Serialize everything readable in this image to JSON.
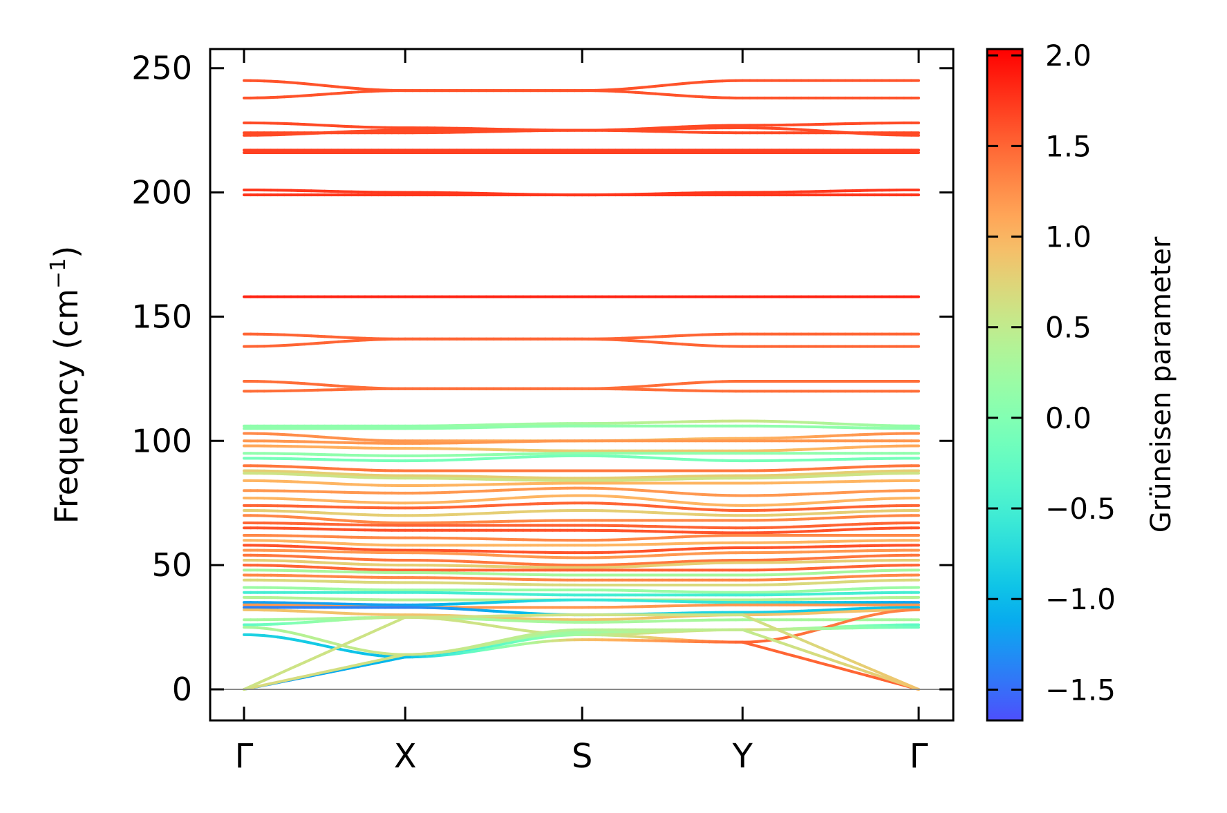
{
  "chart_data": {
    "type": "line",
    "title": "",
    "xlabel": "",
    "ylabel": "Frequency (cm⁻¹)",
    "ylabel_main": "Frequency (cm",
    "ylabel_sup": "−1",
    "ylabel_close": ")",
    "ylim": [
      -12.5,
      257.7
    ],
    "yticks": [
      0,
      50,
      100,
      150,
      200,
      250
    ],
    "ytick_labels": [
      "0",
      "50",
      "100",
      "150",
      "200",
      "250"
    ],
    "kpoints": [
      0,
      205,
      430,
      634,
      858
    ],
    "kpoint_labels": [
      "Γ",
      "X",
      "S",
      "Y",
      "Γ"
    ],
    "zero_line": 0,
    "colorbar": {
      "label": "Grüneisen parameter",
      "range": [
        -1.67,
        2.035
      ],
      "ticks": [
        2.0,
        1.5,
        1.0,
        0.5,
        0.0,
        -0.5,
        -1.0,
        -1.5
      ],
      "tick_labels": [
        "2.0",
        "1.5",
        "1.0",
        "0.5",
        "0.0",
        "−0.5",
        "−1.0",
        "−1.5"
      ],
      "colormap": "rainbow"
    },
    "bands": [
      {
        "freq": [
          245,
          241,
          241,
          245,
          245
        ],
        "gamma": [
          1.6,
          1.6,
          1.6,
          1.6,
          1.6
        ]
      },
      {
        "freq": [
          238,
          241,
          241,
          238,
          238
        ],
        "gamma": [
          1.6,
          1.6,
          1.6,
          1.6,
          1.6
        ]
      },
      {
        "freq": [
          228,
          226,
          225,
          227,
          228
        ],
        "gamma": [
          1.65,
          1.65,
          1.65,
          1.65,
          1.65
        ]
      },
      {
        "freq": [
          224,
          224,
          225,
          224,
          224
        ],
        "gamma": [
          1.65,
          1.65,
          1.65,
          1.65,
          1.65
        ]
      },
      {
        "freq": [
          223,
          225,
          225,
          226,
          223
        ],
        "gamma": [
          1.65,
          1.65,
          1.65,
          1.65,
          1.65
        ]
      },
      {
        "freq": [
          217,
          217,
          217,
          217,
          217
        ],
        "gamma": [
          1.7,
          1.7,
          1.7,
          1.7,
          1.7
        ]
      },
      {
        "freq": [
          216,
          216,
          216,
          216,
          216
        ],
        "gamma": [
          1.7,
          1.7,
          1.7,
          1.7,
          1.7
        ]
      },
      {
        "freq": [
          201,
          200,
          199,
          200,
          201
        ],
        "gamma": [
          1.75,
          1.75,
          1.75,
          1.75,
          1.75
        ]
      },
      {
        "freq": [
          199,
          199,
          199,
          199,
          199
        ],
        "gamma": [
          1.75,
          1.75,
          1.75,
          1.75,
          1.75
        ]
      },
      {
        "freq": [
          158,
          158,
          158,
          158,
          158
        ],
        "gamma": [
          1.85,
          1.85,
          1.85,
          1.85,
          1.85
        ]
      },
      {
        "freq": [
          143,
          141,
          141,
          143,
          143
        ],
        "gamma": [
          1.5,
          1.5,
          1.5,
          1.5,
          1.5
        ]
      },
      {
        "freq": [
          138,
          141,
          141,
          138,
          138
        ],
        "gamma": [
          1.5,
          1.5,
          1.5,
          1.5,
          1.5
        ]
      },
      {
        "freq": [
          124,
          121,
          121,
          124,
          124
        ],
        "gamma": [
          1.45,
          1.45,
          1.45,
          1.45,
          1.45
        ]
      },
      {
        "freq": [
          120,
          121,
          121,
          120,
          120
        ],
        "gamma": [
          1.45,
          1.45,
          1.45,
          1.45,
          1.45
        ]
      },
      {
        "freq": [
          106,
          106,
          107,
          108,
          106
        ],
        "gamma": [
          0.1,
          0.1,
          0.3,
          0.6,
          0.1
        ]
      },
      {
        "freq": [
          105,
          105,
          106,
          106,
          105
        ],
        "gamma": [
          0.1,
          0.1,
          0.1,
          0.1,
          0.1
        ]
      },
      {
        "freq": [
          103,
          100,
          100,
          101,
          103
        ],
        "gamma": [
          1.3,
          1.2,
          0.9,
          1.0,
          1.3
        ]
      },
      {
        "freq": [
          100,
          99,
          100,
          100,
          100
        ],
        "gamma": [
          1.2,
          1.2,
          1.2,
          1.2,
          1.2
        ]
      },
      {
        "freq": [
          98,
          97,
          96,
          96,
          98
        ],
        "gamma": [
          1.1,
          1.0,
          0.8,
          0.9,
          1.1
        ]
      },
      {
        "freq": [
          95,
          94,
          95,
          95,
          95
        ],
        "gamma": [
          0.1,
          0.1,
          0.1,
          0.1,
          0.1
        ]
      },
      {
        "freq": [
          93,
          92,
          94,
          92,
          93
        ],
        "gamma": [
          -0.1,
          -0.1,
          -0.1,
          -0.1,
          -0.1
        ]
      },
      {
        "freq": [
          90,
          88,
          88,
          88,
          90
        ],
        "gamma": [
          1.4,
          1.4,
          1.4,
          1.4,
          1.4
        ]
      },
      {
        "freq": [
          88,
          86,
          85,
          86,
          88
        ],
        "gamma": [
          0.8,
          0.8,
          0.8,
          0.8,
          0.8
        ]
      },
      {
        "freq": [
          87,
          85,
          84,
          85,
          87
        ],
        "gamma": [
          0.6,
          0.6,
          0.6,
          0.6,
          0.6
        ]
      },
      {
        "freq": [
          84,
          82,
          83,
          83,
          84
        ],
        "gamma": [
          1.0,
          1.0,
          1.0,
          1.0,
          1.0
        ]
      },
      {
        "freq": [
          80,
          79,
          81,
          78,
          80
        ],
        "gamma": [
          1.2,
          1.2,
          1.2,
          1.2,
          1.2
        ]
      },
      {
        "freq": [
          77,
          75,
          78,
          74,
          77
        ],
        "gamma": [
          1.0,
          1.0,
          1.0,
          1.0,
          1.0
        ]
      },
      {
        "freq": [
          74,
          73,
          75,
          72,
          74
        ],
        "gamma": [
          1.5,
          1.5,
          1.5,
          1.5,
          1.5
        ]
      },
      {
        "freq": [
          72,
          70,
          72,
          70,
          72
        ],
        "gamma": [
          0.8,
          0.8,
          0.8,
          0.8,
          0.8
        ]
      },
      {
        "freq": [
          70,
          67,
          68,
          68,
          70
        ],
        "gamma": [
          1.3,
          1.3,
          1.3,
          1.3,
          1.3
        ]
      },
      {
        "freq": [
          67,
          66,
          66,
          65,
          67
        ],
        "gamma": [
          1.5,
          1.5,
          1.5,
          1.5,
          1.5
        ]
      },
      {
        "freq": [
          65,
          64,
          64,
          63,
          65
        ],
        "gamma": [
          1.6,
          1.6,
          1.6,
          1.6,
          1.6
        ]
      },
      {
        "freq": [
          62,
          61,
          60,
          62,
          62
        ],
        "gamma": [
          1.3,
          1.3,
          1.3,
          1.3,
          1.3
        ]
      },
      {
        "freq": [
          60,
          58,
          58,
          59,
          60
        ],
        "gamma": [
          1.0,
          1.0,
          1.0,
          1.0,
          1.0
        ]
      },
      {
        "freq": [
          58,
          56,
          55,
          57,
          58
        ],
        "gamma": [
          1.6,
          1.6,
          1.6,
          1.6,
          1.6
        ]
      },
      {
        "freq": [
          56,
          55,
          53,
          55,
          56
        ],
        "gamma": [
          1.2,
          1.2,
          1.2,
          1.2,
          1.2
        ]
      },
      {
        "freq": [
          54,
          52,
          50,
          52,
          54
        ],
        "gamma": [
          1.4,
          1.4,
          1.4,
          1.4,
          1.4
        ]
      },
      {
        "freq": [
          52,
          50,
          49,
          51,
          52
        ],
        "gamma": [
          0.8,
          0.8,
          0.8,
          0.8,
          0.8
        ]
      },
      {
        "freq": [
          50,
          48,
          48,
          48,
          50
        ],
        "gamma": [
          1.5,
          1.5,
          1.5,
          1.5,
          1.5
        ]
      },
      {
        "freq": [
          48,
          47,
          46,
          46,
          48
        ],
        "gamma": [
          0.3,
          0.3,
          0.3,
          0.3,
          0.3
        ]
      },
      {
        "freq": [
          46,
          45,
          44,
          44,
          46
        ],
        "gamma": [
          1.3,
          1.3,
          1.3,
          1.3,
          1.3
        ]
      },
      {
        "freq": [
          44,
          43,
          42,
          42,
          44
        ],
        "gamma": [
          0.7,
          0.7,
          0.7,
          0.7,
          0.7
        ]
      },
      {
        "freq": [
          41,
          40,
          40,
          39,
          41
        ],
        "gamma": [
          0.2,
          0.2,
          0.2,
          0.2,
          0.2
        ]
      },
      {
        "freq": [
          39,
          39,
          38,
          38,
          39
        ],
        "gamma": [
          -0.5,
          -0.5,
          -0.5,
          -0.5,
          -0.5
        ]
      },
      {
        "freq": [
          37,
          36,
          36,
          36,
          37
        ],
        "gamma": [
          0.4,
          0.4,
          0.4,
          0.4,
          0.4
        ]
      },
      {
        "freq": [
          35,
          34,
          36,
          35,
          35
        ],
        "gamma": [
          -1.2,
          -1.2,
          -0.6,
          -0.6,
          -1.2
        ]
      },
      {
        "freq": [
          34,
          33,
          33,
          34,
          34
        ],
        "gamma": [
          1.2,
          1.2,
          1.2,
          1.2,
          1.2
        ]
      },
      {
        "freq": [
          33,
          33,
          30,
          31,
          33
        ],
        "gamma": [
          -1.4,
          -1.4,
          -0.8,
          -0.8,
          -1.0
        ]
      },
      {
        "freq": [
          32,
          30,
          28,
          30,
          32
        ],
        "gamma": [
          0.9,
          0.9,
          0.9,
          0.9,
          0.9
        ]
      },
      {
        "freq": [
          28,
          29,
          27,
          28,
          28
        ],
        "gamma": [
          0.3,
          0.3,
          0.3,
          0.3,
          0.3
        ]
      },
      {
        "freq": [
          26,
          29,
          22,
          24,
          26
        ],
        "gamma": [
          -0.3,
          0.6,
          0.6,
          0.6,
          -0.3
        ]
      },
      {
        "freq": [
          22,
          13,
          22,
          19,
          32
        ],
        "gamma": [
          -0.8,
          -1.0,
          0.3,
          1.5,
          1.3
        ]
      },
      {
        "freq": [
          25,
          14,
          23,
          24,
          25
        ],
        "gamma": [
          0.3,
          0.6,
          0.2,
          0.7,
          -0.2
        ]
      },
      {
        "freq": [
          0,
          13,
          20,
          19,
          0
        ],
        "gamma": [
          -1.3,
          -1.0,
          0.9,
          1.5,
          1.5
        ]
      },
      {
        "freq": [
          0,
          14,
          24,
          24,
          0
        ],
        "gamma": [
          0.7,
          0.6,
          0.4,
          0.5,
          0.9
        ]
      },
      {
        "freq": [
          0,
          29,
          30,
          30,
          0
        ],
        "gamma": [
          0.6,
          0.6,
          0.6,
          0.6,
          0.9
        ]
      }
    ]
  }
}
